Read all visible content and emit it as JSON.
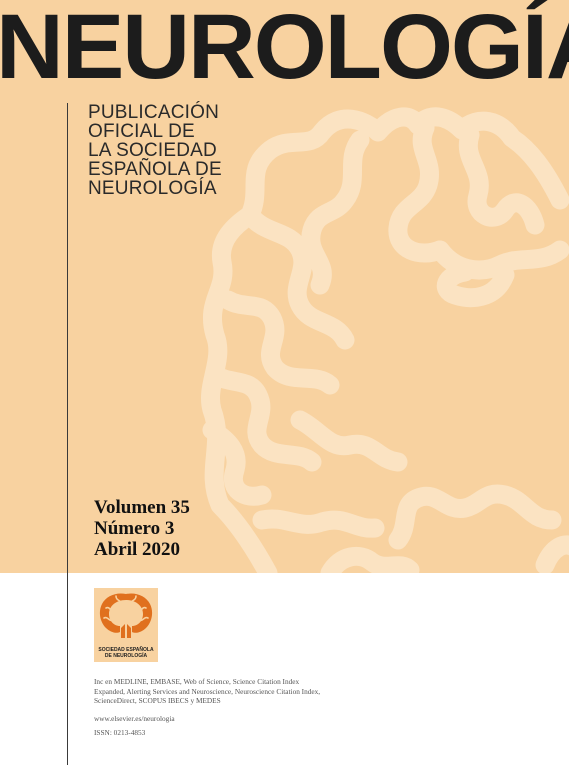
{
  "journal": {
    "title": "NEUROLOGÍA",
    "subtitle_lines": [
      "PUBLICACIÓN",
      "OFICIAL DE",
      "LA SOCIEDAD",
      "ESPAÑOLA DE",
      "NEUROLOGÍA"
    ]
  },
  "issue": {
    "volume": "Volumen 35",
    "number": "Número 3",
    "date": "Abril 2020"
  },
  "society_logo": {
    "caption_line1": "SOCIEDAD ESPAÑOLA",
    "caption_line2": "DE NEUROLOGÍA"
  },
  "indexing": "Inc en MEDLINE, EMBASE, Web of Science, Science Citation Index Expanded, Alerting Services and Neuroscience, Neuroscience Citation Index, ScienceDirect, SCOPUS IBECS y MEDES",
  "website": "www.elsevier.es/neurologia",
  "issn": "ISSN: 0213-4853",
  "colors": {
    "cover_background": "#f8d2a0",
    "brain_pattern": "#fbe3c2",
    "title_text": "#1c1c1c",
    "logo_brain": "#e0701e"
  }
}
